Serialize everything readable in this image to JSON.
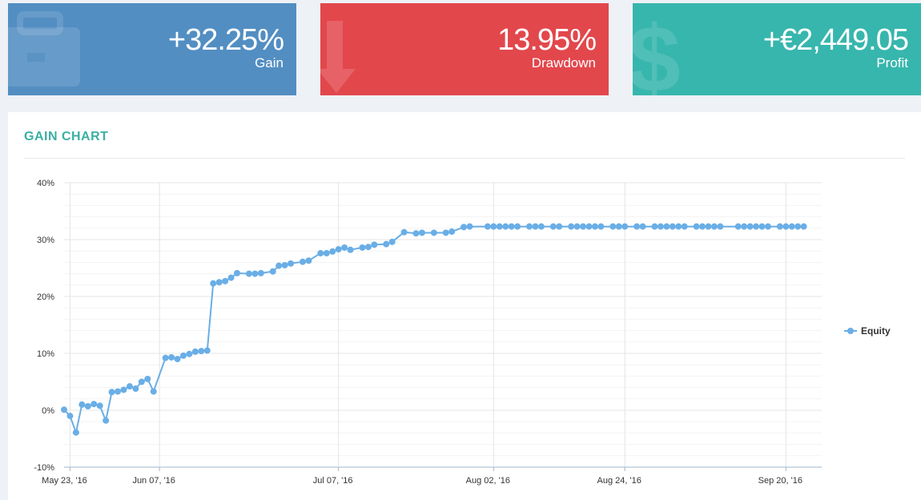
{
  "colors": {
    "gain_card": "#528ec2",
    "drawdown_card": "#e2474c",
    "profit_card": "#37b6ad",
    "title_accent": "#3ab0a3",
    "equity_series": "#6aaee6",
    "growth_series": "#2f3541"
  },
  "stats": {
    "gain": {
      "value": "+32.25%",
      "label": "Gain",
      "icon": "briefcase-icon"
    },
    "drawdown": {
      "value": "13.95%",
      "label": "Drawdown",
      "icon": "arrow-down-icon"
    },
    "profit": {
      "value": "+€2,449.05",
      "label": "Profit",
      "icon": "dollar-icon"
    }
  },
  "panel": {
    "title": "GAIN CHART"
  },
  "chart_data": {
    "type": "line",
    "title": "",
    "xlabel": "",
    "ylabel": "",
    "y_ticks": [
      "-10%",
      "0%",
      "10%",
      "20%",
      "30%",
      "40%"
    ],
    "y_tick_values": [
      -10,
      0,
      10,
      20,
      30,
      40
    ],
    "ylim": [
      -10,
      40
    ],
    "x_ticks": [
      "May 23, '16",
      "Jun 07, '16",
      "Jul 07, '16",
      "Aug 02, '16",
      "Aug 24, '16",
      "Sep 20, '16"
    ],
    "x_tick_dates": [
      "2016-05-23",
      "2016-06-07",
      "2016-07-07",
      "2016-08-02",
      "2016-08-24",
      "2016-09-20"
    ],
    "xlim": [
      "2016-05-22",
      "2016-09-26"
    ],
    "grid": true,
    "legend_position": "right",
    "x": [
      "2016-05-22",
      "2016-05-23",
      "2016-05-24",
      "2016-05-25",
      "2016-05-26",
      "2016-05-27",
      "2016-05-28",
      "2016-05-29",
      "2016-05-30",
      "2016-05-31",
      "2016-06-01",
      "2016-06-02",
      "2016-06-03",
      "2016-06-04",
      "2016-06-05",
      "2016-06-06",
      "2016-06-08",
      "2016-06-09",
      "2016-06-10",
      "2016-06-11",
      "2016-06-12",
      "2016-06-13",
      "2016-06-14",
      "2016-06-15",
      "2016-06-16",
      "2016-06-17",
      "2016-06-18",
      "2016-06-19",
      "2016-06-20",
      "2016-06-22",
      "2016-06-23",
      "2016-06-24",
      "2016-06-26",
      "2016-06-27",
      "2016-06-28",
      "2016-06-29",
      "2016-07-01",
      "2016-07-02",
      "2016-07-04",
      "2016-07-05",
      "2016-07-06",
      "2016-07-07",
      "2016-07-08",
      "2016-07-09",
      "2016-07-11",
      "2016-07-12",
      "2016-07-13",
      "2016-07-15",
      "2016-07-16",
      "2016-07-18",
      "2016-07-20",
      "2016-07-21",
      "2016-07-23",
      "2016-07-25",
      "2016-07-26",
      "2016-07-28",
      "2016-07-29",
      "2016-08-01",
      "2016-08-02",
      "2016-08-03",
      "2016-08-04",
      "2016-08-05",
      "2016-08-06",
      "2016-08-08",
      "2016-08-09",
      "2016-08-10",
      "2016-08-12",
      "2016-08-13",
      "2016-08-15",
      "2016-08-16",
      "2016-08-17",
      "2016-08-18",
      "2016-08-19",
      "2016-08-20",
      "2016-08-22",
      "2016-08-23",
      "2016-08-24",
      "2016-08-26",
      "2016-08-27",
      "2016-08-29",
      "2016-08-30",
      "2016-08-31",
      "2016-09-01",
      "2016-09-02",
      "2016-09-03",
      "2016-09-05",
      "2016-09-06",
      "2016-09-07",
      "2016-09-08",
      "2016-09-09",
      "2016-09-12",
      "2016-09-13",
      "2016-09-14",
      "2016-09-15",
      "2016-09-16",
      "2016-09-17",
      "2016-09-19",
      "2016-09-20",
      "2016-09-21",
      "2016-09-22",
      "2016-09-23"
    ],
    "series": [
      {
        "name": "Equity",
        "marker": "circle",
        "x": [
          "2016-05-22",
          "2016-05-23",
          "2016-05-24",
          "2016-05-25",
          "2016-05-26",
          "2016-05-27",
          "2016-05-28",
          "2016-05-29",
          "2016-05-30",
          "2016-05-31",
          "2016-06-01",
          "2016-06-02",
          "2016-06-03",
          "2016-06-04",
          "2016-06-05",
          "2016-06-06",
          "2016-06-08",
          "2016-06-09",
          "2016-06-10",
          "2016-06-11",
          "2016-06-12",
          "2016-06-13",
          "2016-06-14",
          "2016-06-15",
          "2016-06-16",
          "2016-06-17",
          "2016-06-18",
          "2016-06-19",
          "2016-06-20",
          "2016-06-22",
          "2016-06-23",
          "2016-06-24",
          "2016-06-26",
          "2016-06-27",
          "2016-06-28",
          "2016-06-29",
          "2016-07-01",
          "2016-07-02",
          "2016-07-04",
          "2016-07-05",
          "2016-07-06",
          "2016-07-07",
          "2016-07-08",
          "2016-07-09",
          "2016-07-11",
          "2016-07-12",
          "2016-07-13",
          "2016-07-15",
          "2016-07-16",
          "2016-07-18",
          "2016-07-20",
          "2016-07-21",
          "2016-07-23",
          "2016-07-25",
          "2016-07-26",
          "2016-07-28",
          "2016-07-29",
          "2016-08-01",
          "2016-08-02",
          "2016-08-03",
          "2016-08-04",
          "2016-08-05",
          "2016-08-06",
          "2016-08-08",
          "2016-08-09",
          "2016-08-10",
          "2016-08-12",
          "2016-08-13",
          "2016-08-15",
          "2016-08-16",
          "2016-08-17",
          "2016-08-18",
          "2016-08-19",
          "2016-08-20",
          "2016-08-22",
          "2016-08-23",
          "2016-08-24",
          "2016-08-26",
          "2016-08-27",
          "2016-08-29",
          "2016-08-30",
          "2016-08-31",
          "2016-09-01",
          "2016-09-02",
          "2016-09-03",
          "2016-09-05",
          "2016-09-06",
          "2016-09-07",
          "2016-09-08",
          "2016-09-09",
          "2016-09-12",
          "2016-09-13",
          "2016-09-14",
          "2016-09-15",
          "2016-09-16",
          "2016-09-17",
          "2016-09-19",
          "2016-09-20",
          "2016-09-21",
          "2016-09-22",
          "2016-09-23"
        ],
        "values": [
          0.1,
          -1.0,
          -3.9,
          1.0,
          0.7,
          1.1,
          0.8,
          -1.8,
          3.2,
          3.3,
          3.6,
          4.2,
          3.8,
          5.0,
          5.5,
          3.3,
          9.2,
          9.3,
          9.0,
          9.6,
          9.9,
          10.3,
          10.4,
          10.5,
          22.3,
          22.5,
          22.7,
          23.3,
          24.1,
          24.0,
          24.0,
          24.1,
          24.4,
          25.4,
          25.5,
          25.8,
          26.1,
          26.3,
          27.6,
          27.6,
          27.9,
          28.3,
          28.6,
          28.2,
          28.6,
          28.7,
          29.1,
          29.2,
          29.6,
          31.3,
          31.1,
          31.2,
          31.2,
          31.2,
          31.4,
          32.2,
          32.3,
          32.3,
          32.3,
          32.3,
          32.3,
          32.3,
          32.3,
          32.3,
          32.3,
          32.3,
          32.3,
          32.3,
          32.3,
          32.3,
          32.3,
          32.3,
          32.3,
          32.3,
          32.3,
          32.3,
          32.3,
          32.3,
          32.3,
          32.3,
          32.3,
          32.3,
          32.3,
          32.3,
          32.3,
          32.3,
          32.3,
          32.3,
          32.3,
          32.3,
          32.3,
          32.3,
          32.3,
          32.3,
          32.3,
          32.3,
          32.3,
          32.3,
          32.3,
          32.3,
          32.3
        ]
      }
    ]
  }
}
